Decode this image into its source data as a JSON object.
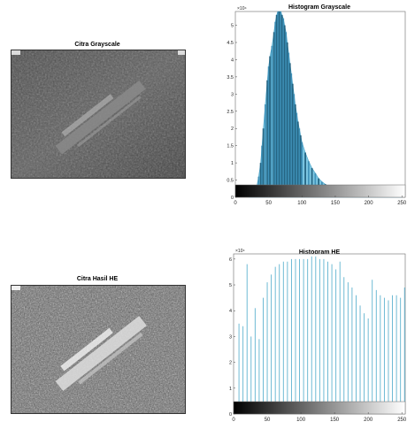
{
  "panels": {
    "gray_image": {
      "title": "Citra Grayscale"
    },
    "he_image": {
      "title": "Citra Hasil HE"
    }
  },
  "chart_data": [
    {
      "type": "bar",
      "title": "Histogram Grayscale",
      "xlabel": "",
      "ylabel": "",
      "xlim": [
        0,
        255
      ],
      "ylim": [
        0,
        5.4
      ],
      "y_exponent_label": "×10⁴",
      "xticks": [
        "0",
        "50",
        "100",
        "150",
        "200",
        "250"
      ],
      "yticks": [
        "0",
        "0.5",
        "1",
        "1.5",
        "2",
        "2.5",
        "3",
        "3.5",
        "4",
        "4.5",
        "5"
      ],
      "x": [
        20,
        25,
        28,
        30,
        32,
        35,
        38,
        40,
        42,
        45,
        48,
        50,
        52,
        55,
        58,
        60,
        62,
        64,
        66,
        68,
        70,
        72,
        74,
        76,
        78,
        80,
        82,
        84,
        86,
        88,
        90,
        92,
        94,
        96,
        98,
        100,
        105,
        110,
        115,
        120,
        125,
        130,
        135,
        140,
        145,
        150,
        160,
        170,
        180,
        190,
        200,
        210,
        220,
        230,
        240,
        250
      ],
      "values": [
        0,
        0.02,
        0.05,
        0.12,
        0.3,
        0.6,
        1.0,
        1.5,
        2.0,
        2.7,
        3.4,
        3.8,
        4.1,
        4.4,
        4.8,
        5.1,
        5.3,
        5.4,
        5.4,
        5.4,
        5.3,
        5.2,
        5.0,
        4.8,
        4.5,
        4.2,
        3.9,
        3.6,
        3.3,
        3.0,
        2.7,
        2.45,
        2.2,
        2.0,
        1.8,
        1.6,
        1.3,
        1.05,
        0.85,
        0.7,
        0.55,
        0.45,
        0.38,
        0.32,
        0.28,
        0.24,
        0.18,
        0.12,
        0.07,
        0.03,
        0.01,
        0,
        0,
        0,
        0,
        0
      ],
      "grid": false,
      "colorbar": true
    },
    {
      "type": "bar",
      "title": "Histogram HE",
      "xlabel": "",
      "ylabel": "",
      "xlim": [
        0,
        255
      ],
      "ylim": [
        0,
        6.2
      ],
      "y_exponent_label": "×10⁴",
      "xticks": [
        "0",
        "50",
        "100",
        "150",
        "200",
        "250"
      ],
      "yticks": [
        "0",
        "1",
        "2",
        "3",
        "4",
        "5",
        "6"
      ],
      "x": [
        8,
        14,
        20,
        26,
        32,
        38,
        44,
        50,
        56,
        62,
        68,
        74,
        80,
        86,
        92,
        98,
        104,
        110,
        116,
        122,
        128,
        134,
        140,
        146,
        152,
        158,
        164,
        170,
        176,
        182,
        188,
        194,
        200,
        206,
        212,
        218,
        224,
        230,
        236,
        242,
        248,
        254
      ],
      "values": [
        3.5,
        3.4,
        5.8,
        3.0,
        4.1,
        2.9,
        4.5,
        5.1,
        5.4,
        5.7,
        5.8,
        5.9,
        5.9,
        6.0,
        6.0,
        6.0,
        6.0,
        6.0,
        6.1,
        6.1,
        6.0,
        6.0,
        5.9,
        5.8,
        5.6,
        5.9,
        5.3,
        5.1,
        4.9,
        4.6,
        4.2,
        3.9,
        3.7,
        5.2,
        4.8,
        4.6,
        4.5,
        4.4,
        4.6,
        4.6,
        4.5,
        4.9
      ],
      "grid": false,
      "colorbar": true
    }
  ]
}
